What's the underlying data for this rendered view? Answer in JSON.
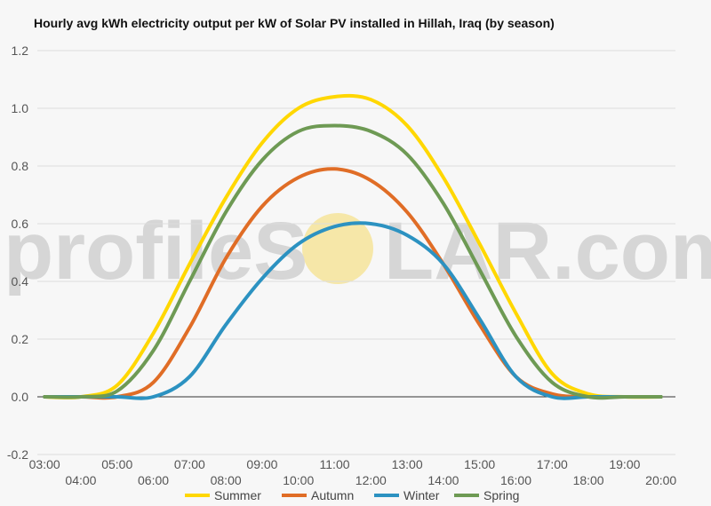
{
  "chart_data": {
    "type": "line",
    "title": "Hourly avg kWh electricity output per kW of Solar PV installed in Hillah, Iraq (by season)",
    "xlabel": "",
    "ylabel": "",
    "ylim": [
      -0.2,
      1.2
    ],
    "yticks": [
      -0.2,
      0.0,
      0.2,
      0.4,
      0.6,
      0.8,
      1.0,
      1.2
    ],
    "ytick_labels": [
      "-0.2",
      "0.0",
      "0.2",
      "0.4",
      "0.6",
      "0.8",
      "1.0",
      "1.2"
    ],
    "x": [
      3,
      4,
      5,
      6,
      7,
      8,
      9,
      10,
      11,
      12,
      13,
      14,
      15,
      16,
      17,
      18,
      19,
      20
    ],
    "xtick_labels": [
      "03:00",
      "04:00",
      "05:00",
      "06:00",
      "07:00",
      "08:00",
      "09:00",
      "10:00",
      "11:00",
      "12:00",
      "13:00",
      "14:00",
      "15:00",
      "16:00",
      "17:00",
      "18:00",
      "19:00",
      "20:00"
    ],
    "grid": true,
    "legend_position": "bottom",
    "series": [
      {
        "name": "Summer",
        "color": "#ffd700",
        "values": [
          0,
          0,
          0.04,
          0.22,
          0.46,
          0.69,
          0.88,
          1.0,
          1.04,
          1.03,
          0.94,
          0.76,
          0.53,
          0.29,
          0.08,
          0.01,
          0,
          0
        ]
      },
      {
        "name": "Autumn",
        "color": "#e06d26",
        "values": [
          0,
          0,
          0,
          0.05,
          0.24,
          0.48,
          0.66,
          0.76,
          0.79,
          0.75,
          0.64,
          0.46,
          0.25,
          0.07,
          0.01,
          0,
          0,
          0
        ]
      },
      {
        "name": "Winter",
        "color": "#2c92c1",
        "values": [
          0,
          0,
          0,
          0,
          0.07,
          0.25,
          0.41,
          0.53,
          0.59,
          0.6,
          0.56,
          0.46,
          0.27,
          0.07,
          0,
          0,
          0,
          0
        ]
      },
      {
        "name": "Spring",
        "color": "#6e9a54",
        "values": [
          0,
          0,
          0.02,
          0.16,
          0.4,
          0.64,
          0.82,
          0.92,
          0.94,
          0.92,
          0.84,
          0.67,
          0.44,
          0.21,
          0.05,
          0,
          0,
          0
        ]
      }
    ]
  },
  "watermark": {
    "text_left": "profileS",
    "text_right": "LAR.com"
  }
}
